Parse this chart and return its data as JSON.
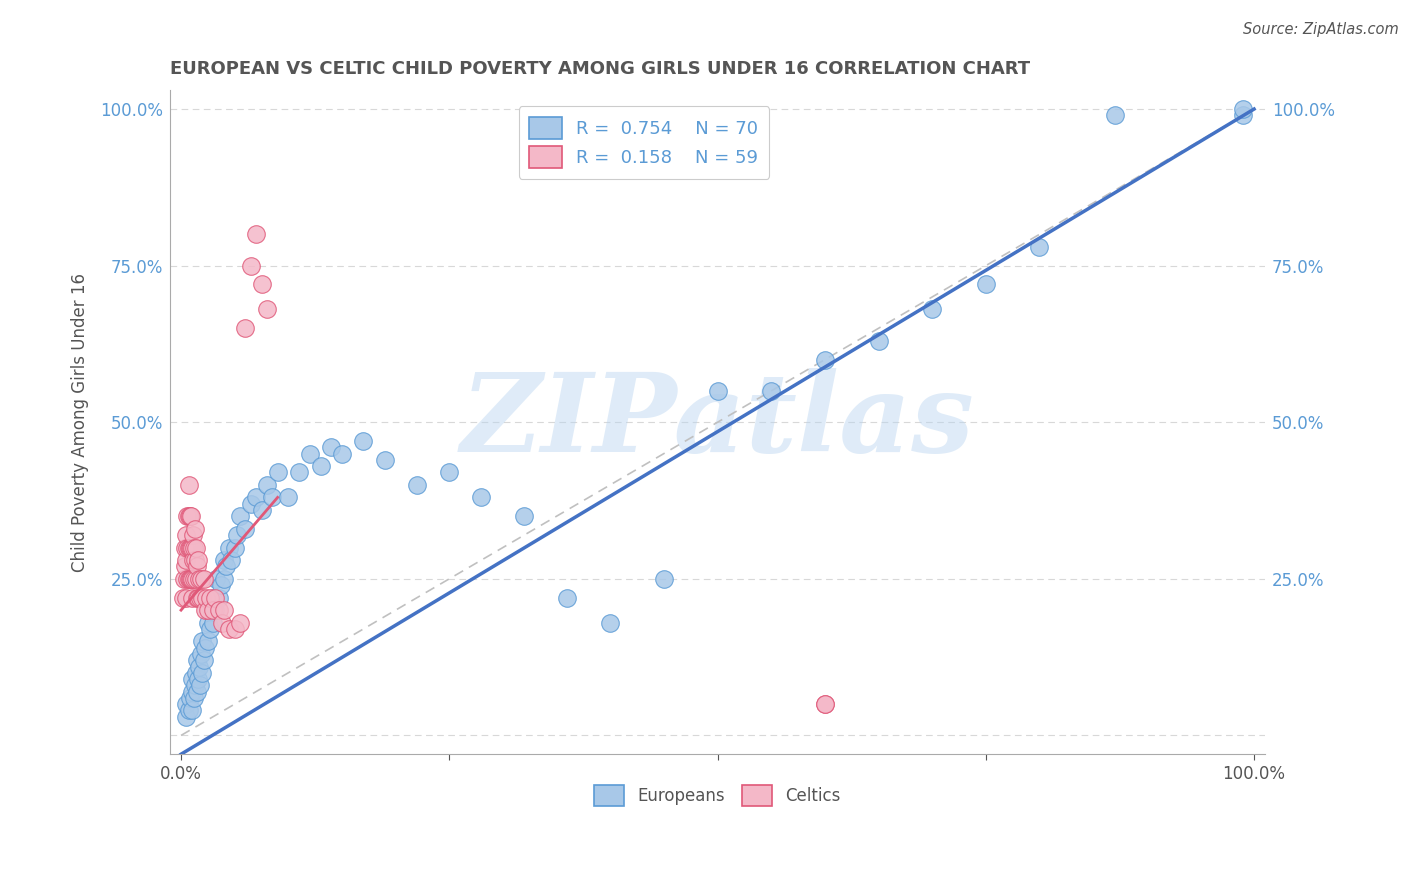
{
  "title": "EUROPEAN VS CELTIC CHILD POVERTY AMONG GIRLS UNDER 16 CORRELATION CHART",
  "source": "Source: ZipAtlas.com",
  "ylabel": "Child Poverty Among Girls Under 16",
  "xlim": [
    -0.01,
    1.01
  ],
  "ylim": [
    -0.03,
    1.03
  ],
  "xticks": [
    0,
    0.25,
    0.5,
    0.75,
    1.0
  ],
  "yticks": [
    0,
    0.25,
    0.5,
    0.75,
    1.0
  ],
  "xticklabels": [
    "0.0%",
    "",
    "",
    "",
    "100.0%"
  ],
  "yticklabels": [
    "",
    "25.0%",
    "50.0%",
    "75.0%",
    "100.0%"
  ],
  "right_yticklabels": [
    "",
    "25.0%",
    "50.0%",
    "75.0%",
    "100.0%"
  ],
  "watermark": "ZIPatlas",
  "european_color": "#a8c8e8",
  "european_edge": "#5b9bd5",
  "celtic_color": "#f4b8c8",
  "celtic_edge": "#e05878",
  "legend_text_color": "#5b9bd5",
  "title_color": "#555555",
  "grid_color": "#d8d8d8",
  "ref_line_color": "#c0c0c0",
  "euro_line_color": "#4472c4",
  "celtic_line_color": "#e05878",
  "euro_x": [
    0.005,
    0.005,
    0.007,
    0.008,
    0.01,
    0.01,
    0.01,
    0.012,
    0.013,
    0.014,
    0.015,
    0.015,
    0.016,
    0.017,
    0.018,
    0.019,
    0.02,
    0.02,
    0.021,
    0.022,
    0.025,
    0.025,
    0.027,
    0.028,
    0.03,
    0.03,
    0.032,
    0.033,
    0.035,
    0.037,
    0.04,
    0.04,
    0.042,
    0.045,
    0.047,
    0.05,
    0.052,
    0.055,
    0.06,
    0.065,
    0.07,
    0.075,
    0.08,
    0.085,
    0.09,
    0.1,
    0.11,
    0.12,
    0.13,
    0.14,
    0.15,
    0.17,
    0.19,
    0.22,
    0.25,
    0.28,
    0.32,
    0.36,
    0.4,
    0.45,
    0.5,
    0.55,
    0.6,
    0.65,
    0.7,
    0.75,
    0.8,
    0.87,
    0.99,
    0.99
  ],
  "euro_y": [
    0.03,
    0.05,
    0.04,
    0.06,
    0.04,
    0.07,
    0.09,
    0.06,
    0.08,
    0.1,
    0.07,
    0.12,
    0.09,
    0.11,
    0.08,
    0.13,
    0.1,
    0.15,
    0.12,
    0.14,
    0.15,
    0.18,
    0.17,
    0.2,
    0.18,
    0.22,
    0.2,
    0.25,
    0.22,
    0.24,
    0.25,
    0.28,
    0.27,
    0.3,
    0.28,
    0.3,
    0.32,
    0.35,
    0.33,
    0.37,
    0.38,
    0.36,
    0.4,
    0.38,
    0.42,
    0.38,
    0.42,
    0.45,
    0.43,
    0.46,
    0.45,
    0.47,
    0.44,
    0.4,
    0.42,
    0.38,
    0.35,
    0.22,
    0.18,
    0.25,
    0.55,
    0.55,
    0.6,
    0.63,
    0.68,
    0.72,
    0.78,
    0.99,
    0.99,
    1.0
  ],
  "celtic_x": [
    0.002,
    0.003,
    0.004,
    0.004,
    0.005,
    0.005,
    0.005,
    0.006,
    0.006,
    0.006,
    0.007,
    0.007,
    0.007,
    0.007,
    0.008,
    0.008,
    0.008,
    0.009,
    0.009,
    0.009,
    0.01,
    0.01,
    0.01,
    0.011,
    0.011,
    0.012,
    0.012,
    0.013,
    0.013,
    0.014,
    0.014,
    0.015,
    0.015,
    0.016,
    0.016,
    0.017,
    0.018,
    0.019,
    0.02,
    0.021,
    0.022,
    0.023,
    0.025,
    0.027,
    0.03,
    0.032,
    0.035,
    0.038,
    0.04,
    0.045,
    0.05,
    0.055,
    0.06,
    0.065,
    0.07,
    0.075,
    0.08,
    0.6,
    0.6
  ],
  "celtic_y": [
    0.22,
    0.25,
    0.27,
    0.3,
    0.22,
    0.28,
    0.32,
    0.25,
    0.3,
    0.35,
    0.25,
    0.3,
    0.35,
    0.4,
    0.25,
    0.3,
    0.35,
    0.25,
    0.3,
    0.35,
    0.22,
    0.25,
    0.3,
    0.28,
    0.32,
    0.25,
    0.3,
    0.28,
    0.33,
    0.25,
    0.3,
    0.22,
    0.27,
    0.22,
    0.28,
    0.25,
    0.22,
    0.25,
    0.22,
    0.25,
    0.2,
    0.22,
    0.2,
    0.22,
    0.2,
    0.22,
    0.2,
    0.18,
    0.2,
    0.17,
    0.17,
    0.18,
    0.65,
    0.75,
    0.8,
    0.72,
    0.68,
    0.05,
    0.05
  ],
  "euro_line_x": [
    0.0,
    1.0
  ],
  "euro_line_y": [
    -0.03,
    1.0
  ],
  "celtic_line_x": [
    0.0,
    0.09
  ],
  "celtic_line_y": [
    0.2,
    0.38
  ]
}
